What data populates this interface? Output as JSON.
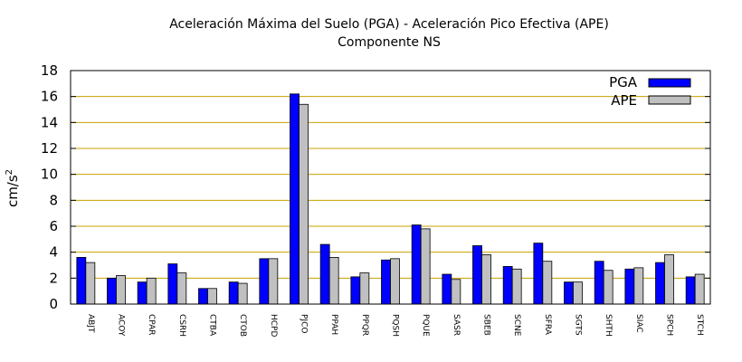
{
  "chart_data": {
    "type": "bar",
    "title": "Aceleración Máxima del Suelo (PGA) -  Aceleración Pico Efectiva (APE)",
    "subtitle": "Componente NS",
    "xlabel": "",
    "ylabel": "cm/s²",
    "ylabel_base": "cm/s",
    "ylabel_exp": "2",
    "ylim": [
      0,
      18
    ],
    "yticks": [
      0,
      2,
      4,
      6,
      8,
      10,
      12,
      14,
      16,
      18
    ],
    "grid": "horizontal",
    "legend_position": "top-right",
    "categories": [
      "ABJT",
      "ACOY",
      "CPAR",
      "CSRH",
      "CTBA",
      "CTOB",
      "HCPD",
      "PJCO",
      "PPAH",
      "PPQR",
      "PQSH",
      "PQUE",
      "SASR",
      "SBEB",
      "SCNE",
      "SFRA",
      "SGTS",
      "SHTH",
      "SIAC",
      "SPCH",
      "STCH"
    ],
    "series": [
      {
        "name": "PGA",
        "color": "#0000ff",
        "values": [
          3.6,
          2.0,
          1.7,
          3.1,
          1.2,
          1.7,
          3.5,
          16.2,
          4.6,
          2.1,
          3.4,
          6.1,
          2.3,
          4.5,
          2.9,
          4.7,
          1.7,
          3.3,
          2.7,
          3.2,
          2.1
        ]
      },
      {
        "name": "APE",
        "color": "#c0c0c0",
        "values": [
          3.2,
          2.2,
          2.0,
          2.4,
          1.2,
          1.6,
          3.5,
          15.4,
          3.6,
          2.4,
          3.5,
          5.8,
          1.9,
          3.8,
          2.7,
          3.3,
          1.7,
          2.6,
          2.8,
          3.8,
          2.3
        ]
      }
    ],
    "colors": {
      "grid": "#c8a000",
      "axis": "#000000",
      "bar_edge": "#000000"
    }
  }
}
